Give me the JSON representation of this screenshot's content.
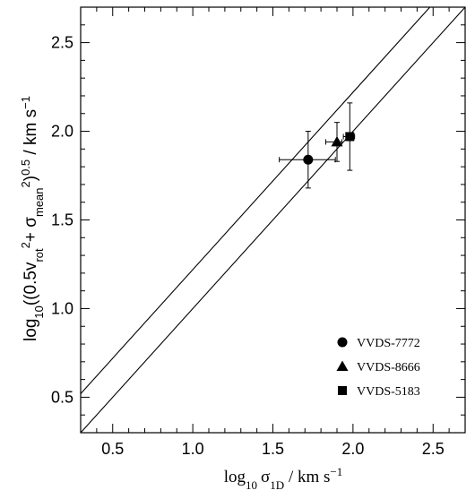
{
  "chart_data": {
    "type": "scatter",
    "title": "",
    "xlabel": "log10 σ1D / km s−1",
    "ylabel": "log10((0.5vrot2+ σmean2)0.5 / km s−1)",
    "xlim": [
      0.3,
      2.7
    ],
    "ylim": [
      0.3,
      2.7
    ],
    "x_ticks": [
      "0.5",
      "1.0",
      "1.5",
      "2.0",
      "2.5"
    ],
    "y_ticks": [
      "0.5",
      "1.0",
      "1.5",
      "2.0",
      "2.5"
    ],
    "grid": false,
    "legend_position": "bottom-right",
    "reference_lines": [
      {
        "slope": 1,
        "intercept": 0.22
      },
      {
        "slope": 1,
        "intercept": 0.0
      }
    ],
    "series": [
      {
        "name": "VVDS-7772",
        "marker": "circle",
        "x": 1.72,
        "y": 1.84,
        "xerr": [
          0.18,
          0.17
        ],
        "yerr": [
          0.16,
          0.16
        ]
      },
      {
        "name": "VVDS-8666",
        "marker": "triangle",
        "x": 1.9,
        "y": 1.94,
        "xerr": [
          0.07,
          0.03
        ],
        "yerr": [
          0.11,
          0.11
        ]
      },
      {
        "name": "VVDS-5183",
        "marker": "square",
        "x": 1.98,
        "y": 1.97,
        "xerr": [
          0.04,
          0.03
        ],
        "yerr": [
          0.19,
          0.19
        ]
      }
    ]
  },
  "axes": {
    "x_title": {
      "prefix": "log",
      "sub": "10",
      "sigma": "σ",
      "sigma_sub": "1D",
      "unit": " / km s",
      "unit_sup": "−1"
    },
    "y_title": {
      "a": "log",
      "a_sub": "10",
      "b": "((0.5v",
      "b_sub": "rot",
      "b_sup": "2",
      "c": "+  σ",
      "c_sub": "mean",
      "c_sup": "2",
      "d": ")",
      "d_sup": "0.5",
      "e": " / km s",
      "e_sup": "−1"
    }
  }
}
